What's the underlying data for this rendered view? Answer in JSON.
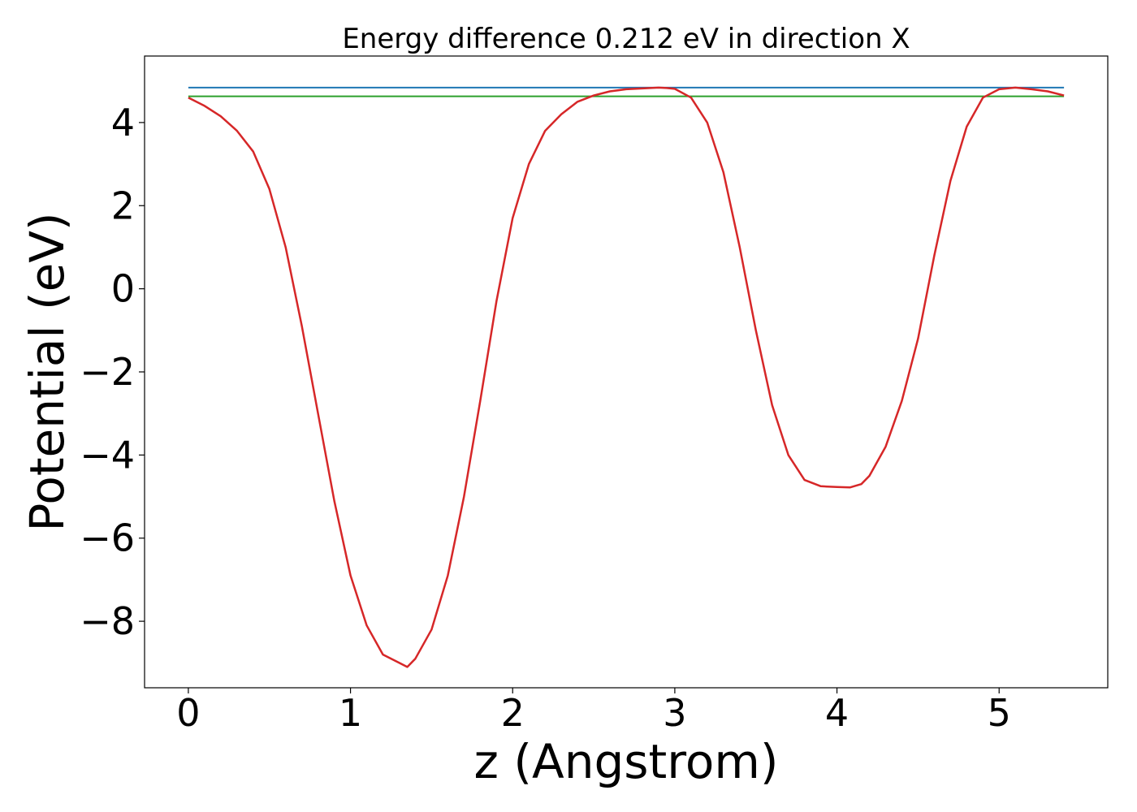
{
  "chart_data": {
    "type": "line",
    "title": "Energy difference 0.212 eV in direction X",
    "xlabel": "z (Angstrom)",
    "ylabel": "Potential (eV)",
    "xlim": [
      -0.27,
      5.67
    ],
    "ylim": [
      -9.6,
      5.6
    ],
    "xticks": [
      0,
      1,
      2,
      3,
      4,
      5
    ],
    "yticks": [
      -8,
      -6,
      -4,
      -2,
      0,
      2,
      4
    ],
    "xtick_labels": [
      "0",
      "1",
      "2",
      "3",
      "4",
      "5"
    ],
    "ytick_labels": [
      "−8",
      "−6",
      "−4",
      "−2",
      "0",
      "2",
      "4"
    ],
    "grid": false,
    "series": [
      {
        "color": "#d62728",
        "x": [
          0,
          0.1,
          0.2,
          0.3,
          0.4,
          0.5,
          0.6,
          0.7,
          0.8,
          0.9,
          1.0,
          1.1,
          1.2,
          1.3,
          1.35,
          1.4,
          1.5,
          1.6,
          1.7,
          1.8,
          1.9,
          2.0,
          2.1,
          2.2,
          2.3,
          2.4,
          2.5,
          2.6,
          2.7,
          2.8,
          2.9,
          2.95,
          3.0,
          3.1,
          3.2,
          3.3,
          3.4,
          3.5,
          3.6,
          3.7,
          3.8,
          3.9,
          4.0,
          4.08,
          4.15,
          4.2,
          4.3,
          4.4,
          4.5,
          4.6,
          4.7,
          4.8,
          4.9,
          5.0,
          5.1,
          5.2,
          5.3,
          5.4
        ],
        "y": [
          4.6,
          4.4,
          4.15,
          3.8,
          3.3,
          2.4,
          1.0,
          -0.9,
          -3.0,
          -5.1,
          -6.9,
          -8.1,
          -8.8,
          -9.0,
          -9.1,
          -8.9,
          -8.2,
          -6.9,
          -5.0,
          -2.7,
          -0.3,
          1.7,
          3.0,
          3.8,
          4.2,
          4.5,
          4.65,
          4.75,
          4.8,
          4.82,
          4.84,
          4.83,
          4.81,
          4.6,
          4.0,
          2.8,
          1.0,
          -1.0,
          -2.8,
          -4.0,
          -4.6,
          -4.75,
          -4.77,
          -4.78,
          -4.7,
          -4.5,
          -3.8,
          -2.7,
          -1.2,
          0.8,
          2.6,
          3.9,
          4.6,
          4.8,
          4.84,
          4.8,
          4.75,
          4.65
        ]
      },
      {
        "color": "#1f77b4",
        "x": [
          0,
          5.4
        ],
        "y": [
          4.84,
          4.84
        ]
      },
      {
        "color": "#2ca02c",
        "x": [
          0,
          5.4
        ],
        "y": [
          4.63,
          4.63
        ]
      }
    ]
  }
}
